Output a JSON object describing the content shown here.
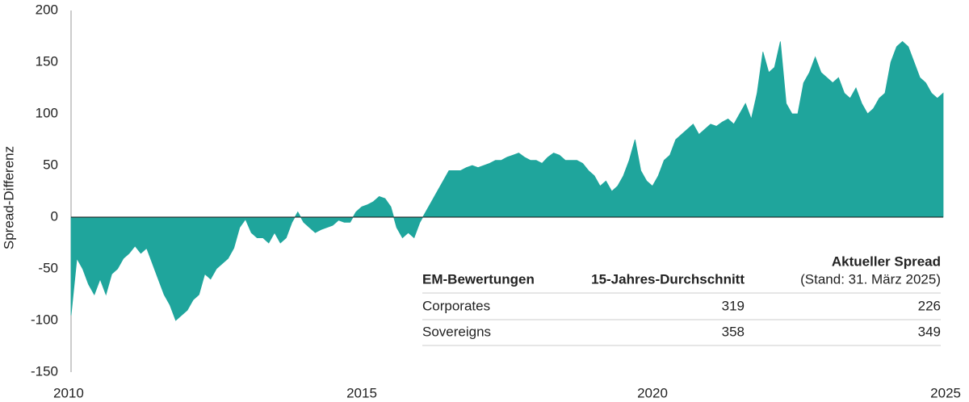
{
  "chart_data": {
    "type": "area",
    "y_label": "Spread-Differenz",
    "color": "#1fa59c",
    "xlim": [
      2010,
      2025
    ],
    "xticks": [
      2010,
      2015,
      2020,
      2025
    ],
    "ylim": [
      -150,
      200
    ],
    "yticks": [
      -150,
      -100,
      -50,
      0,
      50,
      100,
      150,
      200
    ],
    "x": [
      2010.0,
      2010.1,
      2010.2,
      2010.3,
      2010.4,
      2010.5,
      2010.6,
      2010.7,
      2010.8,
      2010.9,
      2011.0,
      2011.1,
      2011.2,
      2011.3,
      2011.4,
      2011.5,
      2011.6,
      2011.7,
      2011.8,
      2011.9,
      2012.0,
      2012.1,
      2012.2,
      2012.3,
      2012.4,
      2012.5,
      2012.6,
      2012.7,
      2012.8,
      2012.9,
      2013.0,
      2013.1,
      2013.2,
      2013.3,
      2013.4,
      2013.5,
      2013.6,
      2013.7,
      2013.8,
      2013.9,
      2014.0,
      2014.1,
      2014.2,
      2014.3,
      2014.4,
      2014.5,
      2014.6,
      2014.7,
      2014.8,
      2014.9,
      2015.0,
      2015.1,
      2015.2,
      2015.3,
      2015.4,
      2015.5,
      2015.6,
      2015.7,
      2015.8,
      2015.9,
      2016.0,
      2016.1,
      2016.2,
      2016.3,
      2016.4,
      2016.5,
      2016.6,
      2016.7,
      2016.8,
      2016.9,
      2017.0,
      2017.1,
      2017.2,
      2017.3,
      2017.4,
      2017.5,
      2017.6,
      2017.7,
      2017.8,
      2017.9,
      2018.0,
      2018.1,
      2018.2,
      2018.3,
      2018.4,
      2018.5,
      2018.6,
      2018.7,
      2018.8,
      2018.9,
      2019.0,
      2019.1,
      2019.2,
      2019.3,
      2019.4,
      2019.5,
      2019.6,
      2019.7,
      2019.8,
      2019.9,
      2020.0,
      2020.1,
      2020.2,
      2020.3,
      2020.4,
      2020.5,
      2020.6,
      2020.7,
      2020.8,
      2020.9,
      2021.0,
      2021.1,
      2021.2,
      2021.3,
      2021.4,
      2021.5,
      2021.6,
      2021.7,
      2021.8,
      2021.9,
      2022.0,
      2022.1,
      2022.2,
      2022.3,
      2022.4,
      2022.5,
      2022.6,
      2022.7,
      2022.8,
      2022.9,
      2023.0,
      2023.1,
      2023.2,
      2023.3,
      2023.4,
      2023.5,
      2023.6,
      2023.7,
      2023.8,
      2023.9,
      2024.0,
      2024.1,
      2024.2,
      2024.3,
      2024.4,
      2024.5,
      2024.6,
      2024.7,
      2024.8,
      2024.9,
      2025.0
    ],
    "values": [
      -95,
      -40,
      -50,
      -65,
      -75,
      -60,
      -75,
      -55,
      -50,
      -40,
      -35,
      -28,
      -35,
      -30,
      -45,
      -60,
      -75,
      -85,
      -100,
      -95,
      -90,
      -80,
      -75,
      -55,
      -60,
      -50,
      -45,
      -40,
      -30,
      -10,
      -2,
      -15,
      -20,
      -20,
      -25,
      -15,
      -25,
      -20,
      -5,
      5,
      -5,
      -10,
      -15,
      -12,
      -10,
      -8,
      -3,
      -5,
      -5,
      5,
      10,
      12,
      15,
      20,
      18,
      10,
      -10,
      -20,
      -15,
      -20,
      -5,
      5,
      15,
      25,
      35,
      45,
      45,
      45,
      48,
      50,
      48,
      50,
      52,
      55,
      55,
      58,
      60,
      62,
      58,
      55,
      55,
      52,
      58,
      62,
      60,
      55,
      55,
      55,
      52,
      45,
      40,
      30,
      35,
      25,
      30,
      40,
      55,
      75,
      45,
      35,
      30,
      40,
      55,
      60,
      75,
      80,
      85,
      90,
      80,
      85,
      90,
      88,
      92,
      95,
      90,
      100,
      110,
      95,
      120,
      160,
      140,
      145,
      170,
      110,
      100,
      100,
      130,
      140,
      155,
      140,
      135,
      130,
      135,
      120,
      115,
      125,
      110,
      100,
      105,
      115,
      120,
      150,
      165,
      170,
      165,
      150,
      135,
      130,
      120,
      115,
      120
    ]
  },
  "table": {
    "header": [
      "EM-Bewertungen",
      "15-Jahres-Durchschnitt",
      "Aktueller Spread"
    ],
    "header_note": "(Stand: 31. März 2025)",
    "rows": [
      [
        "Corporates",
        "319",
        "226"
      ],
      [
        "Sovereigns",
        "358",
        "349"
      ]
    ]
  }
}
